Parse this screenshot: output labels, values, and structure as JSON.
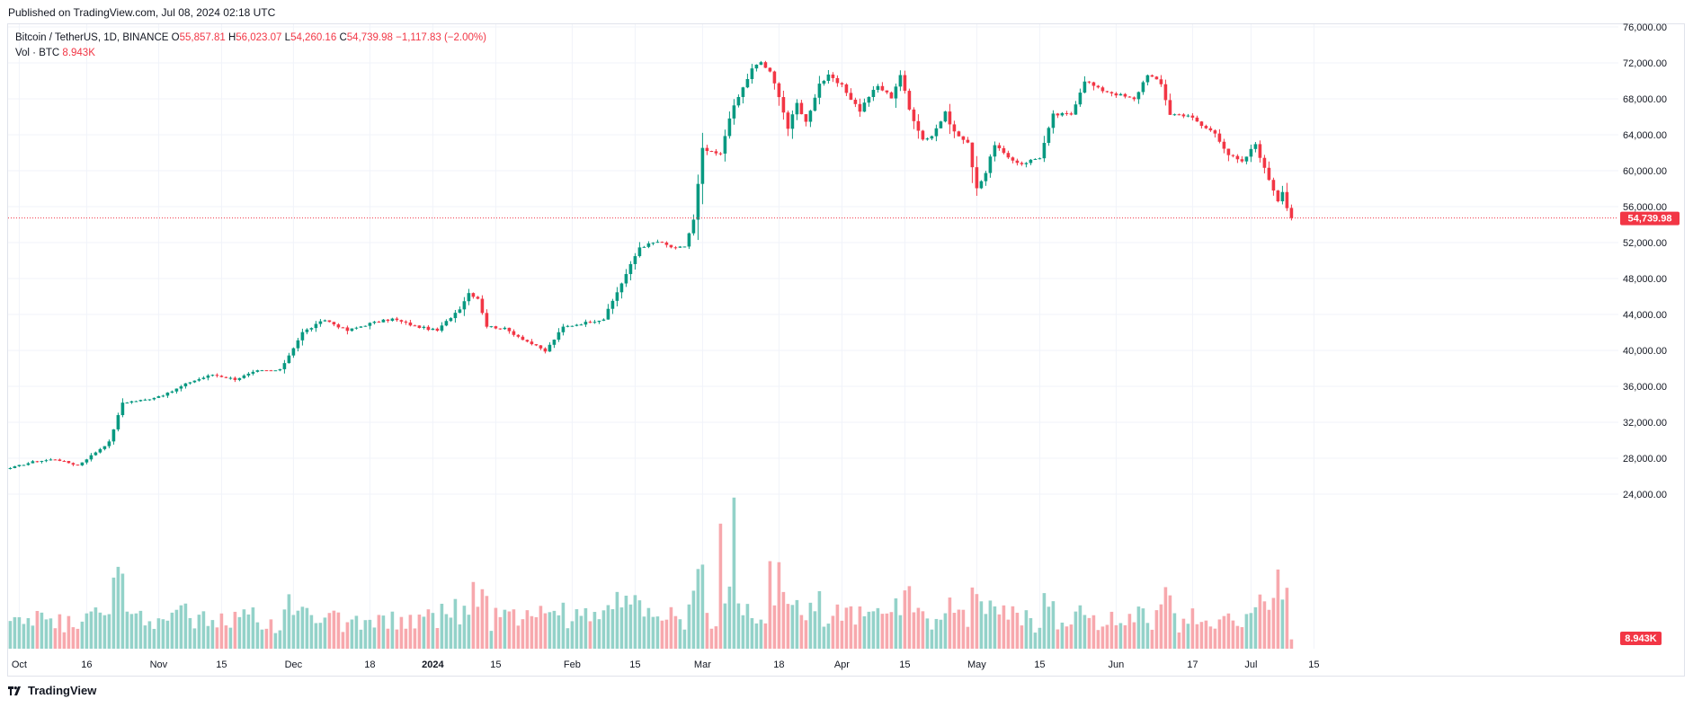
{
  "header": {
    "published": "Published on TradingView.com, Jul 08, 2024 02:18 UTC"
  },
  "legend": {
    "symbol": "Bitcoin / TetherUS, 1D, BINANCE",
    "o_label": "O",
    "o": "55,857.81",
    "h_label": "H",
    "h": "56,023.07",
    "l_label": "L",
    "l": "54,260.16",
    "c_label": "C",
    "c": "54,739.98",
    "change": "−1,117.83 (−2.00%)",
    "vol_label": "Vol · BTC",
    "vol_value": "8.943K"
  },
  "price_scale": {
    "ticks": [
      {
        "v": 76000,
        "t": "76,000.00"
      },
      {
        "v": 72000,
        "t": "72,000.00"
      },
      {
        "v": 68000,
        "t": "68,000.00"
      },
      {
        "v": 64000,
        "t": "64,000.00"
      },
      {
        "v": 60000,
        "t": "60,000.00"
      },
      {
        "v": 56000,
        "t": "56,000.00"
      },
      {
        "v": 52000,
        "t": "52,000.00"
      },
      {
        "v": 48000,
        "t": "48,000.00"
      },
      {
        "v": 44000,
        "t": "44,000.00"
      },
      {
        "v": 40000,
        "t": "40,000.00"
      },
      {
        "v": 36000,
        "t": "36,000.00"
      },
      {
        "v": 32000,
        "t": "32,000.00"
      },
      {
        "v": 28000,
        "t": "28,000.00"
      },
      {
        "v": 24000,
        "t": "24,000.00"
      }
    ],
    "last_price_label": "54,739.98",
    "volume_label": "8.943K"
  },
  "time_scale": [
    {
      "d": 2,
      "t": "Oct",
      "bold": false
    },
    {
      "d": 17,
      "t": "16",
      "bold": false
    },
    {
      "d": 33,
      "t": "Nov",
      "bold": false
    },
    {
      "d": 47,
      "t": "15",
      "bold": false
    },
    {
      "d": 63,
      "t": "Dec",
      "bold": false
    },
    {
      "d": 80,
      "t": "18",
      "bold": false
    },
    {
      "d": 94,
      "t": "2024",
      "bold": true
    },
    {
      "d": 108,
      "t": "15",
      "bold": false
    },
    {
      "d": 125,
      "t": "Feb",
      "bold": false
    },
    {
      "d": 139,
      "t": "15",
      "bold": false
    },
    {
      "d": 154,
      "t": "Mar",
      "bold": false
    },
    {
      "d": 171,
      "t": "18",
      "bold": false
    },
    {
      "d": 185,
      "t": "Apr",
      "bold": false
    },
    {
      "d": 199,
      "t": "15",
      "bold": false
    },
    {
      "d": 215,
      "t": "May",
      "bold": false
    },
    {
      "d": 229,
      "t": "15",
      "bold": false
    },
    {
      "d": 246,
      "t": "Jun",
      "bold": false
    },
    {
      "d": 263,
      "t": "17",
      "bold": false
    },
    {
      "d": 276,
      "t": "Jul",
      "bold": false
    },
    {
      "d": 290,
      "t": "15",
      "bold": false
    }
  ],
  "colors": {
    "up": "#089981",
    "down": "#f23645",
    "vol_up": "#93d2c9",
    "vol_down": "#f7a8ad",
    "grid": "#f0f3fa",
    "text": "#131722"
  },
  "chart_data": {
    "type": "candlestick",
    "series": [
      {
        "name": "Bitcoin / TetherUS, 1D, BINANCE",
        "start_date": "2023-09-30",
        "close_anchors": [
          [
            0,
            26900
          ],
          [
            5,
            27600
          ],
          [
            10,
            27900
          ],
          [
            15,
            27200
          ],
          [
            18,
            28300
          ],
          [
            22,
            29800
          ],
          [
            25,
            34200
          ],
          [
            30,
            34500
          ],
          [
            35,
            35200
          ],
          [
            40,
            36500
          ],
          [
            45,
            37300
          ],
          [
            50,
            36800
          ],
          [
            55,
            37700
          ],
          [
            60,
            37800
          ],
          [
            65,
            42000
          ],
          [
            70,
            43400
          ],
          [
            75,
            42200
          ],
          [
            80,
            43000
          ],
          [
            85,
            43500
          ],
          [
            90,
            42700
          ],
          [
            95,
            42200
          ],
          [
            100,
            44700
          ],
          [
            102,
            46400
          ],
          [
            104,
            45800
          ],
          [
            106,
            42700
          ],
          [
            110,
            42400
          ],
          [
            115,
            41000
          ],
          [
            119,
            39900
          ],
          [
            123,
            42600
          ],
          [
            128,
            43100
          ],
          [
            132,
            43500
          ],
          [
            136,
            47500
          ],
          [
            140,
            51500
          ],
          [
            144,
            52100
          ],
          [
            148,
            51300
          ],
          [
            150,
            51600
          ],
          [
            152,
            54500
          ],
          [
            154,
            62400
          ],
          [
            156,
            62000
          ],
          [
            158,
            61800
          ],
          [
            160,
            66000
          ],
          [
            162,
            68200
          ],
          [
            165,
            71300
          ],
          [
            167,
            72100
          ],
          [
            169,
            70900
          ],
          [
            171,
            68400
          ],
          [
            173,
            64700
          ],
          [
            175,
            67500
          ],
          [
            177,
            65400
          ],
          [
            180,
            69700
          ],
          [
            182,
            70500
          ],
          [
            185,
            69400
          ],
          [
            189,
            66700
          ],
          [
            191,
            68300
          ],
          [
            193,
            69400
          ],
          [
            196,
            68200
          ],
          [
            198,
            70700
          ],
          [
            200,
            66800
          ],
          [
            203,
            63500
          ],
          [
            205,
            63900
          ],
          [
            208,
            66400
          ],
          [
            210,
            64300
          ],
          [
            213,
            63000
          ],
          [
            215,
            58100
          ],
          [
            217,
            59800
          ],
          [
            219,
            63000
          ],
          [
            222,
            61300
          ],
          [
            225,
            60800
          ],
          [
            229,
            61500
          ],
          [
            232,
            66200
          ],
          [
            236,
            66300
          ],
          [
            239,
            70100
          ],
          [
            242,
            69100
          ],
          [
            245,
            68700
          ],
          [
            250,
            67900
          ],
          [
            253,
            70800
          ],
          [
            256,
            69600
          ],
          [
            258,
            66300
          ],
          [
            262,
            66200
          ],
          [
            265,
            65000
          ],
          [
            268,
            64200
          ],
          [
            271,
            61800
          ],
          [
            274,
            60900
          ],
          [
            277,
            63000
          ],
          [
            279,
            60200
          ],
          [
            281,
            57900
          ],
          [
            282,
            56700
          ],
          [
            283,
            57800
          ],
          [
            284,
            55900
          ],
          [
            285,
            54740
          ]
        ]
      },
      {
        "name": "Vol · BTC",
        "unit": "K BTC",
        "last_value": 8.943,
        "notable_peaks": [
          {
            "d": 158,
            "v": 120
          },
          {
            "d": 161,
            "v": 145
          },
          {
            "d": 169,
            "v": 84
          },
          {
            "d": 171,
            "v": 83
          },
          {
            "d": 103,
            "v": 64
          },
          {
            "d": 282,
            "v": 76
          }
        ]
      }
    ],
    "x_range": [
      "2023-09-30",
      "2024-07-21"
    ],
    "y_range": [
      23000,
      78000
    ],
    "last_price": 54739.98,
    "grid": true
  }
}
